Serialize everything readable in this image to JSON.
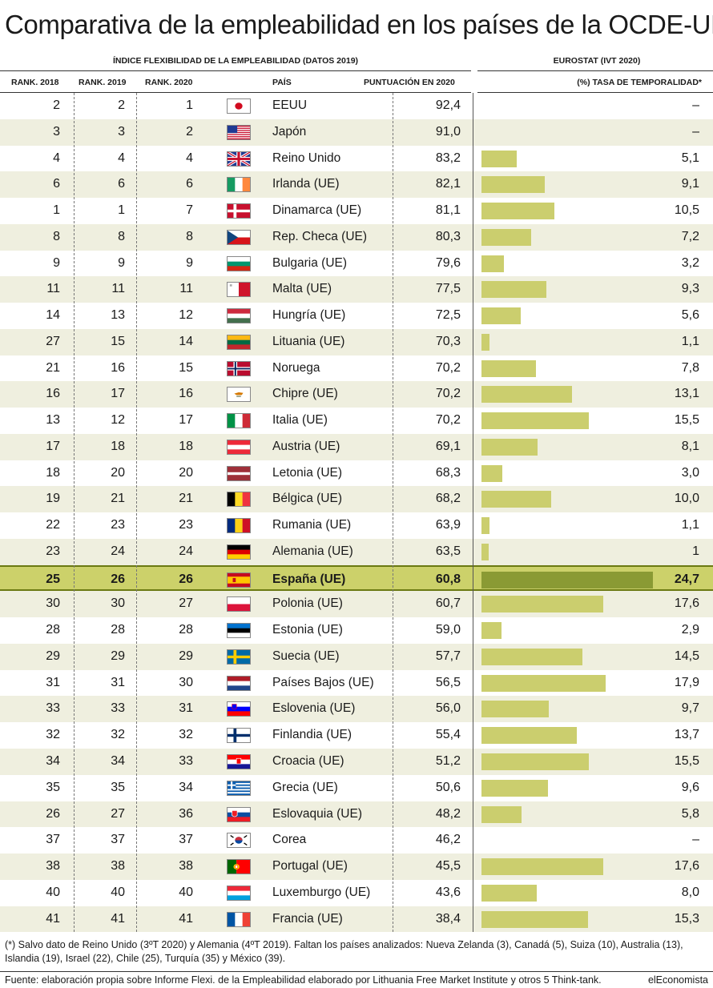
{
  "title": "Comparativa de la empleabilidad en los países de la OCDE-UE",
  "section_left": "ÍNDICE FLEXIBILIDAD DE LA EMPLEABILIDAD (DATOS 2019)",
  "section_right": "EUROSTAT (IVT 2020)",
  "headers": {
    "rank2018": "RANK. 2018",
    "rank2019": "RANK. 2019",
    "rank2020": "RANK. 2020",
    "country": "PAÍS",
    "score": "PUNTUACIÓN EN 2020",
    "temp": "(%) TASA DE TEMPORALIDAD*"
  },
  "colors": {
    "bar": "#cbce6e",
    "bar_highlight": "#8a9a34",
    "row_alt": "#efefdf",
    "row_highlight": "#ccd16a"
  },
  "chart_data": {
    "type": "table",
    "bar_xlim": [
      0,
      24.7
    ],
    "rows": [
      {
        "r2018": "2",
        "r2019": "2",
        "r2020": "1",
        "country": "EEUU",
        "flag": "jp-flag",
        "score": "92,4",
        "temp": null,
        "temp_label": "–"
      },
      {
        "r2018": "3",
        "r2019": "3",
        "r2020": "2",
        "country": "Japón",
        "flag": "us-flag",
        "score": "91,0",
        "temp": null,
        "temp_label": "–"
      },
      {
        "r2018": "4",
        "r2019": "4",
        "r2020": "4",
        "country": "Reino Unido",
        "flag": "gb-flag",
        "score": "83,2",
        "temp": 5.1,
        "temp_label": "5,1"
      },
      {
        "r2018": "6",
        "r2019": "6",
        "r2020": "6",
        "country": "Irlanda (UE)",
        "flag": "ie-flag",
        "score": "82,1",
        "temp": 9.1,
        "temp_label": "9,1"
      },
      {
        "r2018": "1",
        "r2019": "1",
        "r2020": "7",
        "country": "Dinamarca (UE)",
        "flag": "dk-flag",
        "score": "81,1",
        "temp": 10.5,
        "temp_label": "10,5"
      },
      {
        "r2018": "8",
        "r2019": "8",
        "r2020": "8",
        "country": "Rep. Checa (UE)",
        "flag": "cz-flag",
        "score": "80,3",
        "temp": 7.2,
        "temp_label": "7,2"
      },
      {
        "r2018": "9",
        "r2019": "9",
        "r2020": "9",
        "country": "Bulgaria (UE)",
        "flag": "bg-flag",
        "score": "79,6",
        "temp": 3.2,
        "temp_label": "3,2"
      },
      {
        "r2018": "11",
        "r2019": "11",
        "r2020": "11",
        "country": "Malta (UE)",
        "flag": "mt-flag",
        "score": "77,5",
        "temp": 9.3,
        "temp_label": "9,3"
      },
      {
        "r2018": "14",
        "r2019": "13",
        "r2020": "12",
        "country": "Hungría (UE)",
        "flag": "hu-flag",
        "score": "72,5",
        "temp": 5.6,
        "temp_label": "5,6"
      },
      {
        "r2018": "27",
        "r2019": "15",
        "r2020": "14",
        "country": "Lituania (UE)",
        "flag": "lt-flag",
        "score": "70,3",
        "temp": 1.1,
        "temp_label": "1,1"
      },
      {
        "r2018": "21",
        "r2019": "16",
        "r2020": "15",
        "country": "Noruega",
        "flag": "no-flag",
        "score": "70,2",
        "temp": 7.8,
        "temp_label": "7,8"
      },
      {
        "r2018": "16",
        "r2019": "17",
        "r2020": "16",
        "country": "Chipre (UE)",
        "flag": "cy-flag",
        "score": "70,2",
        "temp": 13.1,
        "temp_label": "13,1"
      },
      {
        "r2018": "13",
        "r2019": "12",
        "r2020": "17",
        "country": "Italia (UE)",
        "flag": "it-flag",
        "score": "70,2",
        "temp": 15.5,
        "temp_label": "15,5"
      },
      {
        "r2018": "17",
        "r2019": "18",
        "r2020": "18",
        "country": "Austria (UE)",
        "flag": "at-flag",
        "score": "69,1",
        "temp": 8.1,
        "temp_label": "8,1"
      },
      {
        "r2018": "18",
        "r2019": "20",
        "r2020": "20",
        "country": "Letonia (UE)",
        "flag": "lv-flag",
        "score": "68,3",
        "temp": 3.0,
        "temp_label": "3,0"
      },
      {
        "r2018": "19",
        "r2019": "21",
        "r2020": "21",
        "country": "Bélgica (UE)",
        "flag": "be-flag",
        "score": "68,2",
        "temp": 10.0,
        "temp_label": "10,0"
      },
      {
        "r2018": "22",
        "r2019": "23",
        "r2020": "23",
        "country": "Rumania (UE)",
        "flag": "ro-flag",
        "score": "63,9",
        "temp": 1.1,
        "temp_label": "1,1"
      },
      {
        "r2018": "23",
        "r2019": "24",
        "r2020": "24",
        "country": "Alemania (UE)",
        "flag": "de-flag",
        "score": "63,5",
        "temp": 1,
        "temp_label": "1"
      },
      {
        "r2018": "25",
        "r2019": "26",
        "r2020": "26",
        "country": "España (UE)",
        "flag": "es-flag",
        "score": "60,8",
        "temp": 24.7,
        "temp_label": "24,7",
        "highlight": true
      },
      {
        "r2018": "30",
        "r2019": "30",
        "r2020": "27",
        "country": "Polonia (UE)",
        "flag": "pl-flag",
        "score": "60,7",
        "temp": 17.6,
        "temp_label": "17,6"
      },
      {
        "r2018": "28",
        "r2019": "28",
        "r2020": "28",
        "country": "Estonia (UE)",
        "flag": "ee-flag",
        "score": "59,0",
        "temp": 2.9,
        "temp_label": "2,9"
      },
      {
        "r2018": "29",
        "r2019": "29",
        "r2020": "29",
        "country": "Suecia (UE)",
        "flag": "se-flag",
        "score": "57,7",
        "temp": 14.5,
        "temp_label": "14,5"
      },
      {
        "r2018": "31",
        "r2019": "31",
        "r2020": "30",
        "country": "Países Bajos (UE)",
        "flag": "nl-flag",
        "score": "56,5",
        "temp": 17.9,
        "temp_label": "17,9"
      },
      {
        "r2018": "33",
        "r2019": "33",
        "r2020": "31",
        "country": "Eslovenia (UE)",
        "flag": "si-flag",
        "score": "56,0",
        "temp": 9.7,
        "temp_label": "9,7"
      },
      {
        "r2018": "32",
        "r2019": "32",
        "r2020": "32",
        "country": "Finlandia (UE)",
        "flag": "fi-flag",
        "score": "55,4",
        "temp": 13.7,
        "temp_label": "13,7"
      },
      {
        "r2018": "34",
        "r2019": "34",
        "r2020": "33",
        "country": "Croacia (UE)",
        "flag": "hr-flag",
        "score": "51,2",
        "temp": 15.5,
        "temp_label": "15,5"
      },
      {
        "r2018": "35",
        "r2019": "35",
        "r2020": "34",
        "country": "Grecia (UE)",
        "flag": "gr-flag",
        "score": "50,6",
        "temp": 9.6,
        "temp_label": "9,6"
      },
      {
        "r2018": "26",
        "r2019": "27",
        "r2020": "36",
        "country": "Eslovaquia (UE)",
        "flag": "sk-flag",
        "score": "48,2",
        "temp": 5.8,
        "temp_label": "5,8"
      },
      {
        "r2018": "37",
        "r2019": "37",
        "r2020": "37",
        "country": "Corea",
        "flag": "kr-flag",
        "score": "46,2",
        "temp": null,
        "temp_label": "–"
      },
      {
        "r2018": "38",
        "r2019": "38",
        "r2020": "38",
        "country": "Portugal (UE)",
        "flag": "pt-flag",
        "score": "45,5",
        "temp": 17.6,
        "temp_label": "17,6"
      },
      {
        "r2018": "40",
        "r2019": "40",
        "r2020": "40",
        "country": "Luxemburgo (UE)",
        "flag": "lu-flag",
        "score": "43,6",
        "temp": 8.0,
        "temp_label": "8,0"
      },
      {
        "r2018": "41",
        "r2019": "41",
        "r2020": "41",
        "country": "Francia (UE)",
        "flag": "fr-flag",
        "score": "38,4",
        "temp": 15.3,
        "temp_label": "15,3"
      }
    ]
  },
  "footnote": "(*) Salvo dato de Reino Unido (3ºT 2020) y Alemania (4ºT 2019). Faltan los países analizados: Nueva Zelanda (3), Canadá (5), Suiza (10), Australia (13), Islandia (19), Israel (22), Chile (25), Turquía (35) y México (39).",
  "source": "Fuente: elaboración propia sobre Informe Flexi. de la Empleabilidad elaborado por Lithuania Free Market Institute y otros 5 Think-tank.",
  "brand": "elEconomista"
}
